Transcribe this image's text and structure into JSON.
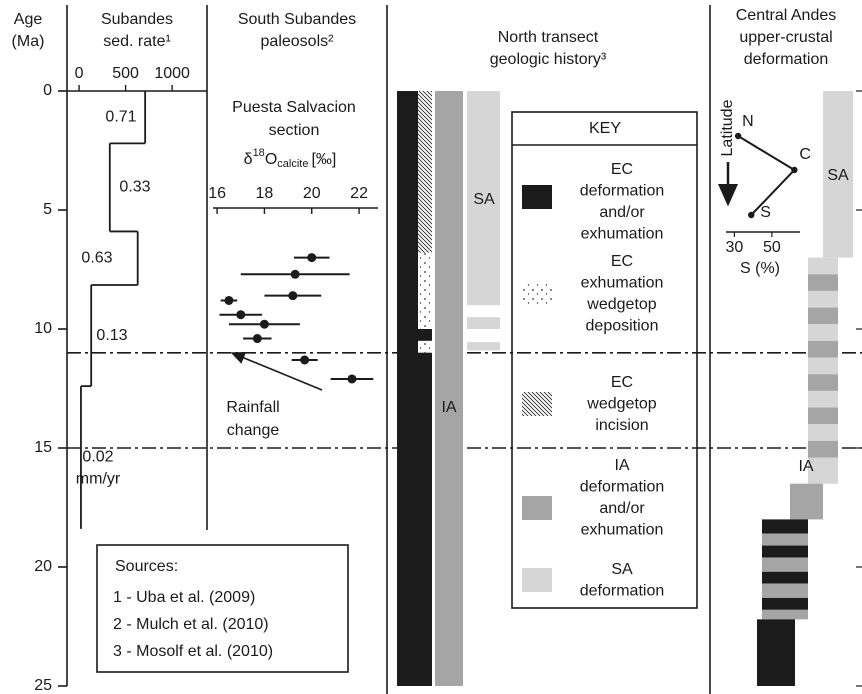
{
  "age_axis": {
    "title": [
      "Age",
      "(Ma)"
    ],
    "ylim": [
      0,
      25
    ],
    "yticks": [
      0,
      5,
      10,
      15,
      20,
      25
    ],
    "reference_lines": [
      11,
      15
    ]
  },
  "chart_data": [
    {
      "type": "step",
      "title": [
        "Subandes",
        "sed. rate¹"
      ],
      "xlim": [
        -130,
        1375
      ],
      "xticks": [
        0,
        500,
        1000
      ],
      "age_edges": [
        0,
        2.2,
        5.9,
        8.15,
        12.4,
        18.4
      ],
      "values": [
        710,
        330,
        630,
        130,
        20
      ],
      "value_labels": [
        "0.71",
        "0.33",
        "0.63",
        "0.13",
        "0.02"
      ],
      "unit": "mm/yr"
    },
    {
      "type": "scatter",
      "title": [
        "South Subandes",
        "paleosols²"
      ],
      "subtitle": [
        "Puesta Salvacion",
        "section"
      ],
      "x_label": {
        "symbol": "δ",
        "sup": "18",
        "main": "O",
        "sub": "calcite",
        "unit": "[‰]"
      },
      "xlim": [
        15.7,
        22.8
      ],
      "xticks": [
        16,
        18,
        20,
        22
      ],
      "ages": [
        7.0,
        7.7,
        8.6,
        8.8,
        9.4,
        9.8,
        10.4,
        11.3,
        12.1
      ],
      "values": [
        20.0,
        19.3,
        19.2,
        16.5,
        17.0,
        18.0,
        17.7,
        19.7,
        21.7
      ],
      "errors": [
        0.75,
        2.3,
        1.2,
        0.35,
        0.9,
        1.5,
        0.6,
        0.55,
        0.9
      ],
      "color": "#1b1b1b",
      "annotation": [
        "Rainfall",
        "change"
      ]
    },
    {
      "type": "columns",
      "title": [
        "North transect",
        "geologic history³"
      ],
      "columns": [
        {
          "label": "EC",
          "segments": [
            {
              "from": 0,
              "to": 25,
              "fill": "#1b1b1b"
            }
          ]
        },
        {
          "segments": [
            {
              "from": 0,
              "to": 6.8,
              "fill": "hatch"
            },
            {
              "from": 6.8,
              "to": 10,
              "fill": "dots"
            },
            {
              "from": 10,
              "to": 10.5,
              "fill": "#1b1b1b"
            },
            {
              "from": 10.5,
              "to": 11,
              "fill": "dots"
            },
            {
              "from": 11,
              "to": 25,
              "fill": "#1b1b1b"
            }
          ]
        },
        {
          "label": "IA",
          "segments": [
            {
              "from": 0,
              "to": 25,
              "fill": "#a5a5a5"
            }
          ]
        },
        {
          "label": "SA",
          "segments": [
            {
              "from": 0,
              "to": 9,
              "fill": "#d6d6d6"
            },
            {
              "from": 9.5,
              "to": 10,
              "fill": "#d6d6d6"
            },
            {
              "from": 10.55,
              "to": 10.9,
              "fill": "#d6d6d6"
            }
          ]
        }
      ],
      "key": {
        "title": "KEY",
        "entries": [
          {
            "fill": "#1b1b1b",
            "lines": [
              "EC",
              "deformation",
              "and/or",
              "exhumation"
            ]
          },
          {
            "fill": "dots",
            "lines": [
              "EC",
              "exhumation",
              "wedgetop",
              "deposition"
            ]
          },
          {
            "fill": "hatch",
            "lines": [
              "EC",
              "wedgetop",
              "incision"
            ]
          },
          {
            "fill": "#a5a5a5",
            "lines": [
              "IA",
              "deformation",
              "and/or",
              "exhumation"
            ]
          },
          {
            "fill": "#d6d6d6",
            "lines": [
              "SA",
              "deformation"
            ]
          }
        ]
      }
    },
    {
      "type": "columns",
      "title": [
        "Central Andes",
        "upper-crustal",
        "deformation"
      ],
      "columns": [
        {
          "label": "SA",
          "segments": [
            {
              "from": 0,
              "to": 7,
              "fill": "#d6d6d6"
            }
          ]
        },
        {
          "segments": [
            {
              "from": 7.0,
              "to": 7.7,
              "fill": "#d6d6d6"
            },
            {
              "from": 7.7,
              "to": 8.4,
              "fill": "#a5a5a5"
            },
            {
              "from": 8.4,
              "to": 9.1,
              "fill": "#d6d6d6"
            },
            {
              "from": 9.1,
              "to": 9.8,
              "fill": "#a5a5a5"
            },
            {
              "from": 9.8,
              "to": 10.5,
              "fill": "#d6d6d6"
            },
            {
              "from": 10.5,
              "to": 11.2,
              "fill": "#a5a5a5"
            },
            {
              "from": 11.2,
              "to": 11.9,
              "fill": "#d6d6d6"
            },
            {
              "from": 11.9,
              "to": 12.6,
              "fill": "#a5a5a5"
            },
            {
              "from": 12.6,
              "to": 13.3,
              "fill": "#d6d6d6"
            },
            {
              "from": 13.3,
              "to": 14.0,
              "fill": "#a5a5a5"
            },
            {
              "from": 14.0,
              "to": 14.7,
              "fill": "#d6d6d6"
            },
            {
              "from": 14.7,
              "to": 15.4,
              "fill": "#a5a5a5"
            },
            {
              "from": 15.4,
              "to": 16.5,
              "fill": "#d6d6d6"
            }
          ]
        },
        {
          "label": "IA",
          "segments": [
            {
              "from": 16.5,
              "to": 18.0,
              "fill": "#a5a5a5"
            }
          ]
        },
        {
          "segments": [
            {
              "from": 18.0,
              "to": 18.6,
              "fill": "#1b1b1b"
            },
            {
              "from": 18.6,
              "to": 19.1,
              "fill": "#a5a5a5"
            },
            {
              "from": 19.1,
              "to": 19.6,
              "fill": "#1b1b1b"
            },
            {
              "from": 19.6,
              "to": 20.2,
              "fill": "#a5a5a5"
            },
            {
              "from": 20.2,
              "to": 20.7,
              "fill": "#1b1b1b"
            },
            {
              "from": 20.7,
              "to": 21.3,
              "fill": "#a5a5a5"
            },
            {
              "from": 21.3,
              "to": 21.8,
              "fill": "#1b1b1b"
            },
            {
              "from": 21.8,
              "to": 22.2,
              "fill": "#a5a5a5"
            }
          ]
        },
        {
          "label": "EC",
          "segments": [
            {
              "from": 22.2,
              "to": 25,
              "fill": "#1b1b1b"
            }
          ]
        }
      ]
    },
    {
      "type": "line",
      "y_label": "Latitude",
      "x_label": "S (%)",
      "categories": [
        "N",
        "C",
        "S"
      ],
      "values": [
        32,
        62,
        39
      ],
      "xlim": [
        25,
        65
      ],
      "xticks": [
        30,
        50
      ],
      "color": "#1b1b1b"
    }
  ],
  "sources": {
    "title": "Sources:",
    "items": [
      "1 - Uba et al. (2009)",
      "2 - Mulch et al. (2010)",
      "3 - Mosolf et al. (2010)"
    ]
  }
}
